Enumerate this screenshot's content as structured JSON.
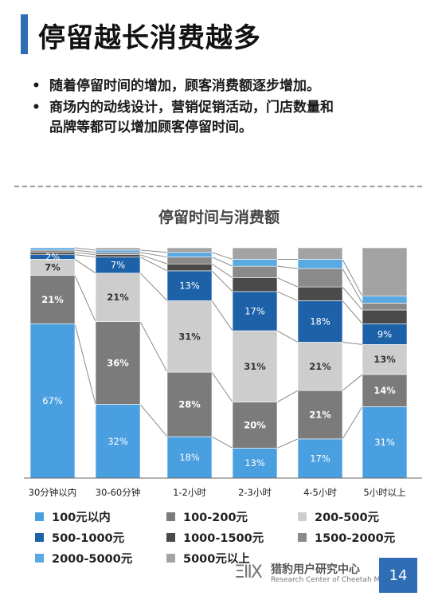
{
  "header": {
    "title": "停留越长消费越多"
  },
  "bullets": [
    {
      "line1": "随着停留时间的增加，顾客消费额逐步增加。",
      "line2": ""
    },
    {
      "line1": "商场内的动线设计，营销促销活动，门店数量和",
      "line2": "品牌等都可以增加顾客停留时间。"
    }
  ],
  "chart_data": {
    "type": "bar",
    "stacked": true,
    "normalized": true,
    "title": "停留时间与消费额",
    "categories": [
      "30分钟以内",
      "30-60分钟",
      "1-2小时",
      "2-3小时",
      "4-5小时",
      "5小时以上"
    ],
    "series": [
      {
        "name": "100元以内",
        "color": "#4a9fe0",
        "values": [
          67,
          32,
          18,
          13,
          17,
          31
        ]
      },
      {
        "name": "100-200元",
        "color": "#7b7b7b",
        "values": [
          21,
          36,
          28,
          20,
          21,
          14
        ]
      },
      {
        "name": "200-500元",
        "color": "#cdcdcd",
        "values": [
          7,
          21,
          31,
          31,
          21,
          13
        ]
      },
      {
        "name": "500-1000元",
        "color": "#1d62a8",
        "values": [
          2,
          7,
          13,
          17,
          18,
          9
        ]
      },
      {
        "name": "1000-1500元",
        "color": "#4a4a4a",
        "values": [
          1,
          1,
          3,
          6,
          6,
          6
        ]
      },
      {
        "name": "1500-2000元",
        "color": "#8a8a8a",
        "values": [
          1,
          1,
          3,
          5,
          8,
          3
        ]
      },
      {
        "name": "2000-5000元",
        "color": "#5aa9e3",
        "values": [
          1,
          1,
          2,
          3,
          4,
          3
        ]
      },
      {
        "name": "5000元以上",
        "color": "#a3a3a3",
        "values": [
          0,
          1,
          2,
          5,
          5,
          21
        ]
      }
    ],
    "data_labels": [
      [
        "67%",
        "21%",
        "7%",
        "2%",
        "",
        "",
        "",
        ""
      ],
      [
        "32%",
        "36%",
        "21%",
        "7%",
        "",
        "",
        "",
        ""
      ],
      [
        "18%",
        "28%",
        "31%",
        "13%",
        "",
        "",
        "",
        ""
      ],
      [
        "13%",
        "20%",
        "31%",
        "17%",
        "",
        "",
        "",
        ""
      ],
      [
        "17%",
        "21%",
        "21%",
        "18%",
        "",
        "",
        "",
        ""
      ],
      [
        "31%",
        "14%",
        "13%",
        "9%",
        "",
        "",
        "",
        ""
      ]
    ],
    "ylim": [
      0,
      100
    ],
    "legend_position": "bottom"
  },
  "legend": {
    "columns": 3
  },
  "footer": {
    "logo": "ΞΙΙX",
    "org_name": "猎豹用户研究中心",
    "org_sub": "Research Center of Cheetah Mobile",
    "page_number": "14"
  }
}
